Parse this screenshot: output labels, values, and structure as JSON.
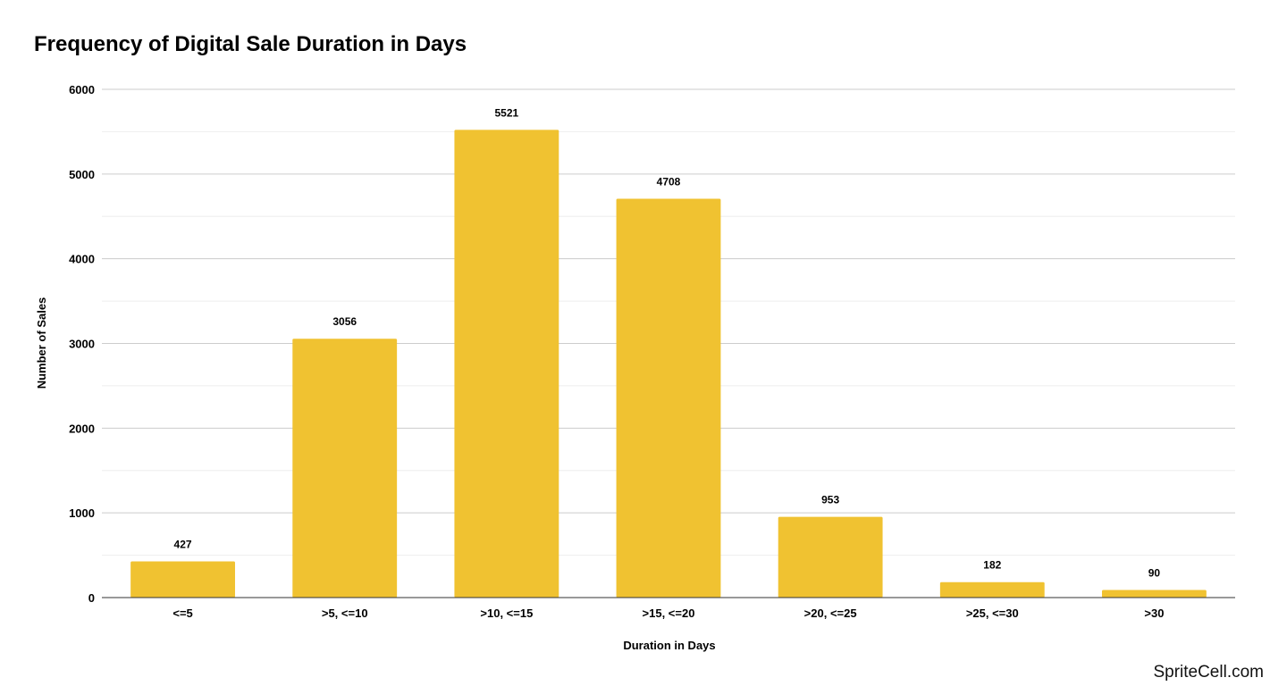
{
  "chart_data": {
    "type": "bar",
    "title": "Frequency of Digital Sale Duration in Days",
    "xlabel": "Duration in Days",
    "ylabel": "Number of Sales",
    "categories": [
      "<=5",
      ">5, <=10",
      ">10, <=15",
      ">15, <=20",
      ">20, <=25",
      ">25, <=30",
      ">30"
    ],
    "values": [
      427,
      3056,
      5521,
      4708,
      953,
      182,
      90
    ],
    "ylim": [
      0,
      6000
    ],
    "yticks": [
      0,
      1000,
      2000,
      3000,
      4000,
      5000,
      6000
    ],
    "minor_gridlines": true,
    "grid": true,
    "legend": "none",
    "bar_color": "#f0c231",
    "gridline_color": "#cccccc",
    "minor_gridline_color": "#eeeeee"
  },
  "watermark": "SpriteCell.com"
}
